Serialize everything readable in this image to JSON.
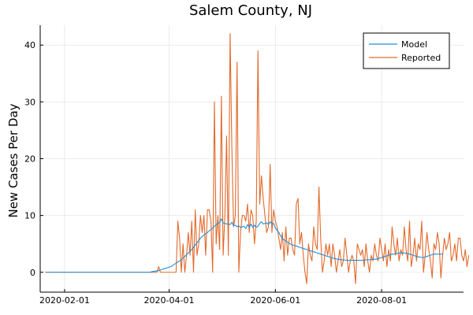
{
  "chart_data": {
    "type": "line",
    "title": "Salem County, NJ",
    "ylabel": "New Cases Per Day",
    "xlabel": "",
    "x_start": "2020-01-21",
    "x_end": "2020-09-13",
    "xlim": [
      "2020-01-18",
      "2020-09-17"
    ],
    "ylim": [
      -3.5,
      43.5
    ],
    "x_ticks": [
      "2020-02-01",
      "2020-04-01",
      "2020-06-01",
      "2020-08-01"
    ],
    "y_ticks": [
      0,
      10,
      20,
      30,
      40
    ],
    "grid": true,
    "legend_position": "top-right",
    "series": [
      {
        "name": "Model",
        "color": "#1f8fdc",
        "start": "2020-01-21",
        "values": [
          0,
          0,
          0,
          0,
          0,
          0,
          0,
          0,
          0,
          0,
          0,
          0,
          0,
          0,
          0,
          0,
          0,
          0,
          0,
          0,
          0,
          0,
          0,
          0,
          0,
          0,
          0,
          0,
          0,
          0,
          0,
          0,
          0,
          0,
          0,
          0,
          0,
          0,
          0,
          0,
          0,
          0,
          0,
          0,
          0,
          0,
          0,
          0,
          0,
          0,
          0,
          0,
          0,
          0,
          0,
          0,
          0,
          0,
          0,
          0,
          0,
          0.1,
          0.15,
          0.2,
          0.25,
          0.3,
          0.4,
          0.5,
          0.6,
          0.7,
          0.8,
          0.9,
          1.0,
          1.2,
          1.4,
          1.6,
          1.8,
          2.0,
          2.2,
          2.5,
          2.8,
          3.1,
          3.4,
          3.7,
          4.0,
          4.4,
          4.8,
          5.2,
          5.6,
          6.0,
          6.3,
          6.6,
          6.8,
          7.0,
          7.3,
          7.5,
          7.8,
          8.1,
          8.4,
          8.6,
          8.8,
          9.4,
          8.7,
          8.6,
          8.5,
          8.5,
          8.4,
          8.8,
          8.2,
          8.3,
          8.0,
          8.2,
          7.9,
          8.0,
          8.1,
          7.7,
          8.4,
          7.9,
          8.5,
          7.9,
          8.3,
          7.9,
          8.1,
          8.6,
          8.9,
          8.5,
          8.6,
          8.7,
          8.4,
          8.9,
          8.5,
          8.6,
          7.8,
          7.4,
          7.0,
          6.4,
          6.0,
          5.7,
          5.5,
          5.3,
          5.1,
          4.9,
          4.8,
          4.7,
          4.6,
          4.5,
          4.4,
          4.3,
          4.2,
          4.1,
          4.0,
          3.9,
          3.8,
          3.7,
          3.6,
          3.5,
          3.4,
          3.3,
          3.2,
          3.1,
          3.0,
          2.9,
          2.8,
          2.7,
          2.6,
          2.5,
          2.4,
          2.35,
          2.3,
          2.25,
          2.2,
          2.2,
          2.15,
          2.1,
          2.1,
          2.1,
          2.1,
          2.1,
          2.1,
          2.1,
          2.1,
          2.1,
          2.1,
          2.15,
          2.2,
          2.2,
          2.2,
          2.25,
          2.3,
          2.3,
          2.3,
          2.4,
          2.5,
          2.6,
          2.7,
          2.8,
          2.9,
          3.0,
          3.1,
          3.2,
          3.2,
          3.3,
          3.3,
          3.4,
          3.4,
          3.4,
          3.4,
          3.3,
          3.3,
          3.2,
          3.1,
          3.0,
          2.9,
          2.8,
          2.7,
          2.7,
          2.6,
          2.6,
          2.7,
          2.8,
          2.9,
          3.0,
          3.1,
          3.2,
          3.2,
          3.2,
          3.2,
          3.2,
          3.2
        ]
      },
      {
        "name": "Reported",
        "color": "#e26a2c",
        "start": "2020-01-21",
        "values": [
          0,
          0,
          0,
          0,
          0,
          0,
          0,
          0,
          0,
          0,
          0,
          0,
          0,
          0,
          0,
          0,
          0,
          0,
          0,
          0,
          0,
          0,
          0,
          0,
          0,
          0,
          0,
          0,
          0,
          0,
          0,
          0,
          0,
          0,
          0,
          0,
          0,
          0,
          0,
          0,
          0,
          0,
          0,
          0,
          0,
          0,
          0,
          0,
          0,
          0,
          0,
          0,
          0,
          0,
          0,
          0,
          0,
          0,
          0,
          0,
          0,
          0,
          0,
          0,
          0,
          1,
          0,
          0,
          0,
          0,
          0,
          0,
          0,
          0,
          0,
          0,
          9,
          6,
          0,
          5,
          0,
          3,
          7,
          3,
          9,
          0,
          11,
          3,
          5,
          10,
          7,
          10,
          3,
          11,
          11,
          9,
          0,
          30,
          5,
          10,
          4,
          31,
          3,
          10,
          24,
          3,
          42,
          22,
          8,
          10,
          37,
          0,
          7,
          10,
          10,
          9,
          12,
          7,
          11,
          10,
          5,
          9,
          39,
          12,
          17,
          13,
          10,
          7,
          8,
          19,
          7,
          11,
          9,
          8,
          6,
          4,
          7,
          2,
          8,
          3,
          6,
          6,
          4,
          3,
          12,
          13,
          5,
          7,
          3,
          0,
          -2,
          5,
          3,
          2,
          8,
          5,
          4,
          15,
          6,
          0,
          2,
          5,
          3,
          5,
          1,
          5,
          3,
          0,
          2,
          4,
          1,
          2,
          6,
          3,
          0,
          2,
          3,
          2,
          -2,
          5,
          4,
          3,
          4,
          1,
          5,
          2,
          0,
          3,
          2,
          5,
          3,
          2,
          6,
          4,
          2,
          5,
          1,
          4,
          2,
          8,
          5,
          3,
          6,
          2,
          4,
          3,
          8,
          4,
          2,
          9,
          1,
          3,
          6,
          2,
          5,
          4,
          9,
          0,
          3,
          7,
          4,
          2,
          -1,
          5,
          4,
          7,
          5,
          -1,
          3,
          6,
          4,
          5,
          7,
          2,
          3,
          5,
          2,
          6,
          6,
          3,
          2,
          4,
          1,
          3
        ]
      }
    ]
  }
}
